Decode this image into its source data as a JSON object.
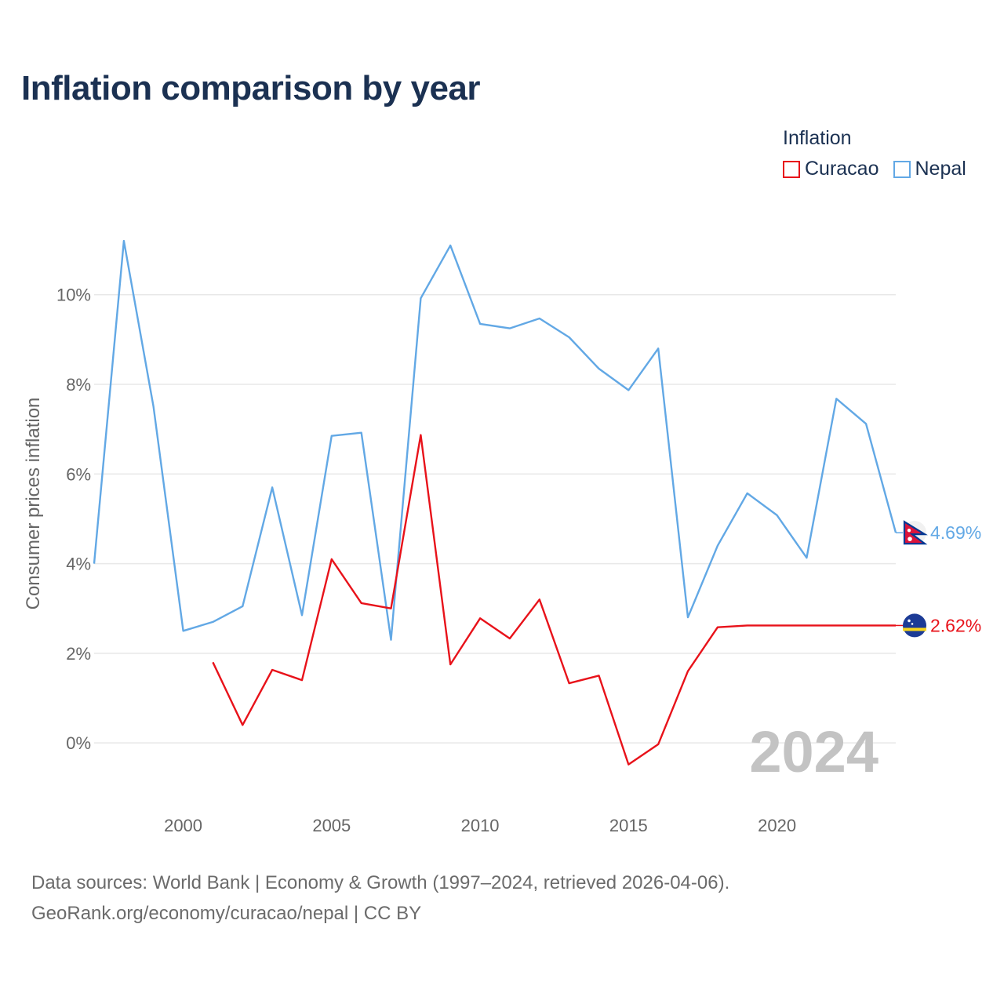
{
  "title": "Inflation comparison by year",
  "legend": {
    "title": "Inflation",
    "items": [
      {
        "label": "Curacao",
        "color": "#e8121a"
      },
      {
        "label": "Nepal",
        "color": "#62a8e5"
      }
    ]
  },
  "source": {
    "line1": "Data sources: World Bank | Economy & Growth (1997–2024, retrieved 2026-04-06).",
    "line2": "GeoRank.org/economy/curacao/nepal | CC BY"
  },
  "chart_data": {
    "type": "line",
    "title": "Inflation comparison by year",
    "xlabel": "",
    "ylabel": "Consumer prices inflation",
    "xlim": [
      1997,
      2024
    ],
    "ylim": [
      -1.1,
      11.5
    ],
    "grid": true,
    "year_watermark": "2024",
    "x_ticks": [
      {
        "value": 2000,
        "label": "2000"
      },
      {
        "value": 2005,
        "label": "2005"
      },
      {
        "value": 2010,
        "label": "2010"
      },
      {
        "value": 2015,
        "label": "2015"
      },
      {
        "value": 2020,
        "label": "2020"
      }
    ],
    "y_ticks": [
      {
        "value": 0,
        "label": "0%"
      },
      {
        "value": 2,
        "label": "2%"
      },
      {
        "value": 4,
        "label": "4%"
      },
      {
        "value": 6,
        "label": "6%"
      },
      {
        "value": 8,
        "label": "8%"
      },
      {
        "value": 10,
        "label": "10%"
      }
    ],
    "series": [
      {
        "name": "Nepal",
        "color": "#62a8e5",
        "end_label": "4.69%",
        "flag": "nepal-flag-icon",
        "points": [
          [
            1997,
            4.0
          ],
          [
            1998,
            11.2
          ],
          [
            1999,
            7.5
          ],
          [
            2000,
            2.5
          ],
          [
            2001,
            2.7
          ],
          [
            2002,
            3.05
          ],
          [
            2003,
            5.7
          ],
          [
            2004,
            2.85
          ],
          [
            2005,
            6.85
          ],
          [
            2006,
            6.92
          ],
          [
            2007,
            2.3
          ],
          [
            2008,
            9.92
          ],
          [
            2009,
            11.1
          ],
          [
            2010,
            9.35
          ],
          [
            2011,
            9.25
          ],
          [
            2012,
            9.47
          ],
          [
            2013,
            9.05
          ],
          [
            2014,
            8.35
          ],
          [
            2015,
            7.87
          ],
          [
            2016,
            8.8
          ],
          [
            2017,
            2.8
          ],
          [
            2018,
            4.4
          ],
          [
            2019,
            5.57
          ],
          [
            2020,
            5.08
          ],
          [
            2021,
            4.13
          ],
          [
            2022,
            7.68
          ],
          [
            2023,
            7.12
          ],
          [
            2024,
            4.69
          ]
        ]
      },
      {
        "name": "Curacao",
        "color": "#e8121a",
        "end_label": "2.62%",
        "flag": "curacao-flag-icon",
        "points": [
          [
            2001,
            1.8
          ],
          [
            2002,
            0.4
          ],
          [
            2003,
            1.63
          ],
          [
            2004,
            1.4
          ],
          [
            2005,
            4.1
          ],
          [
            2006,
            3.12
          ],
          [
            2007,
            3.0
          ],
          [
            2008,
            6.87
          ],
          [
            2009,
            1.75
          ],
          [
            2010,
            2.78
          ],
          [
            2011,
            2.33
          ],
          [
            2012,
            3.2
          ],
          [
            2013,
            1.33
          ],
          [
            2014,
            1.5
          ],
          [
            2015,
            -0.48
          ],
          [
            2016,
            -0.03
          ],
          [
            2017,
            1.6
          ],
          [
            2018,
            2.58
          ],
          [
            2019,
            2.62
          ],
          [
            2020,
            2.62
          ],
          [
            2021,
            2.62
          ],
          [
            2022,
            2.62
          ],
          [
            2023,
            2.62
          ],
          [
            2024,
            2.62
          ]
        ]
      }
    ]
  }
}
